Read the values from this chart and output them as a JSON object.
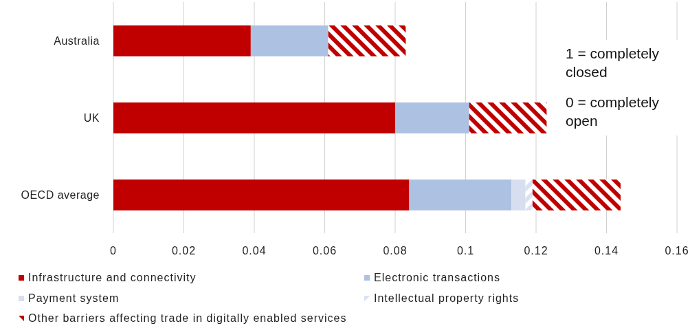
{
  "chart_data": {
    "type": "bar",
    "orientation": "horizontal",
    "stacked": true,
    "categories": [
      "Australia",
      "UK",
      "OECD average"
    ],
    "series": [
      {
        "name": "Infrastructure and connectivity",
        "color": "#c00000",
        "values": [
          0.039,
          0.08,
          0.084
        ]
      },
      {
        "name": "Electronic transactions",
        "color": "#adc2e3",
        "values": [
          0.022,
          0.021,
          0.029
        ]
      },
      {
        "name": "Payment system",
        "color": "#d6deef",
        "values": [
          0,
          0,
          0.004
        ]
      },
      {
        "name": "Intellectual property rights",
        "color": "#dae2f1",
        "values": [
          0,
          0,
          0.002
        ]
      },
      {
        "name": "Other barriers affecting trade in digitally enabled services",
        "color": "#c00000",
        "values": [
          0.022,
          0.022,
          0.025
        ]
      }
    ],
    "xlim": [
      0,
      0.16
    ],
    "xticks": [
      0,
      0.02,
      0.04,
      0.06,
      0.08,
      0.1,
      0.12,
      0.14,
      0.16
    ],
    "grid": "x",
    "legend": "bottom",
    "annotations": [
      "1 = completely closed",
      "0 = completely open"
    ]
  }
}
